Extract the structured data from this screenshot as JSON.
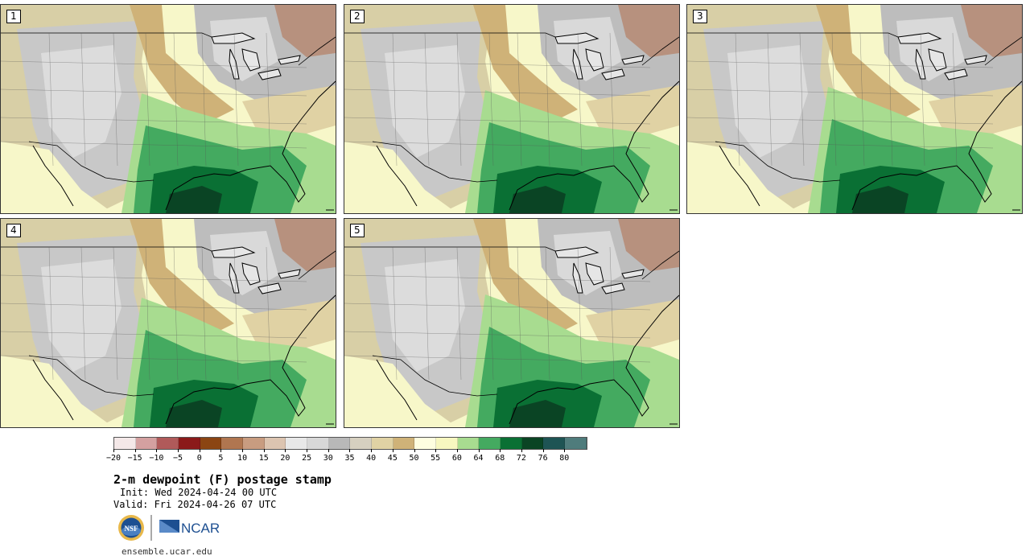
{
  "panels": [
    {
      "label": "1"
    },
    {
      "label": "2"
    },
    {
      "label": "3"
    },
    {
      "label": "4"
    },
    {
      "label": "5"
    }
  ],
  "colorbar": {
    "colors": [
      "#f4e8e8",
      "#d4a0a0",
      "#b05a5a",
      "#8b1a1a",
      "#8b4513",
      "#b07650",
      "#c89c80",
      "#dcc4b0",
      "#e8e8e8",
      "#d8d8d8",
      "#b8b8b8",
      "#d6d0c0",
      "#e0d2a4",
      "#cfb278",
      "#fefee0",
      "#f7f7c0",
      "#a8dc90",
      "#44aa60",
      "#0a7034",
      "#0a4424",
      "#1e5454",
      "#4f7c7c"
    ],
    "tick_labels": [
      "−20",
      "−15",
      "−10",
      "−5",
      "0",
      "5",
      "10",
      "15",
      "20",
      "25",
      "30",
      "35",
      "40",
      "45",
      "50",
      "55",
      "60",
      "64",
      "68",
      "72",
      "76",
      "80"
    ]
  },
  "title": "2-m dewpoint (F) postage stamp",
  "init": "Init: Wed 2024-04-24 00 UTC",
  "valid": "Valid: Fri 2024-04-26 07 UTC",
  "logos": {
    "nsf": "NSF",
    "ncar": "NCAR"
  },
  "url": "ensemble.ucar.edu"
}
